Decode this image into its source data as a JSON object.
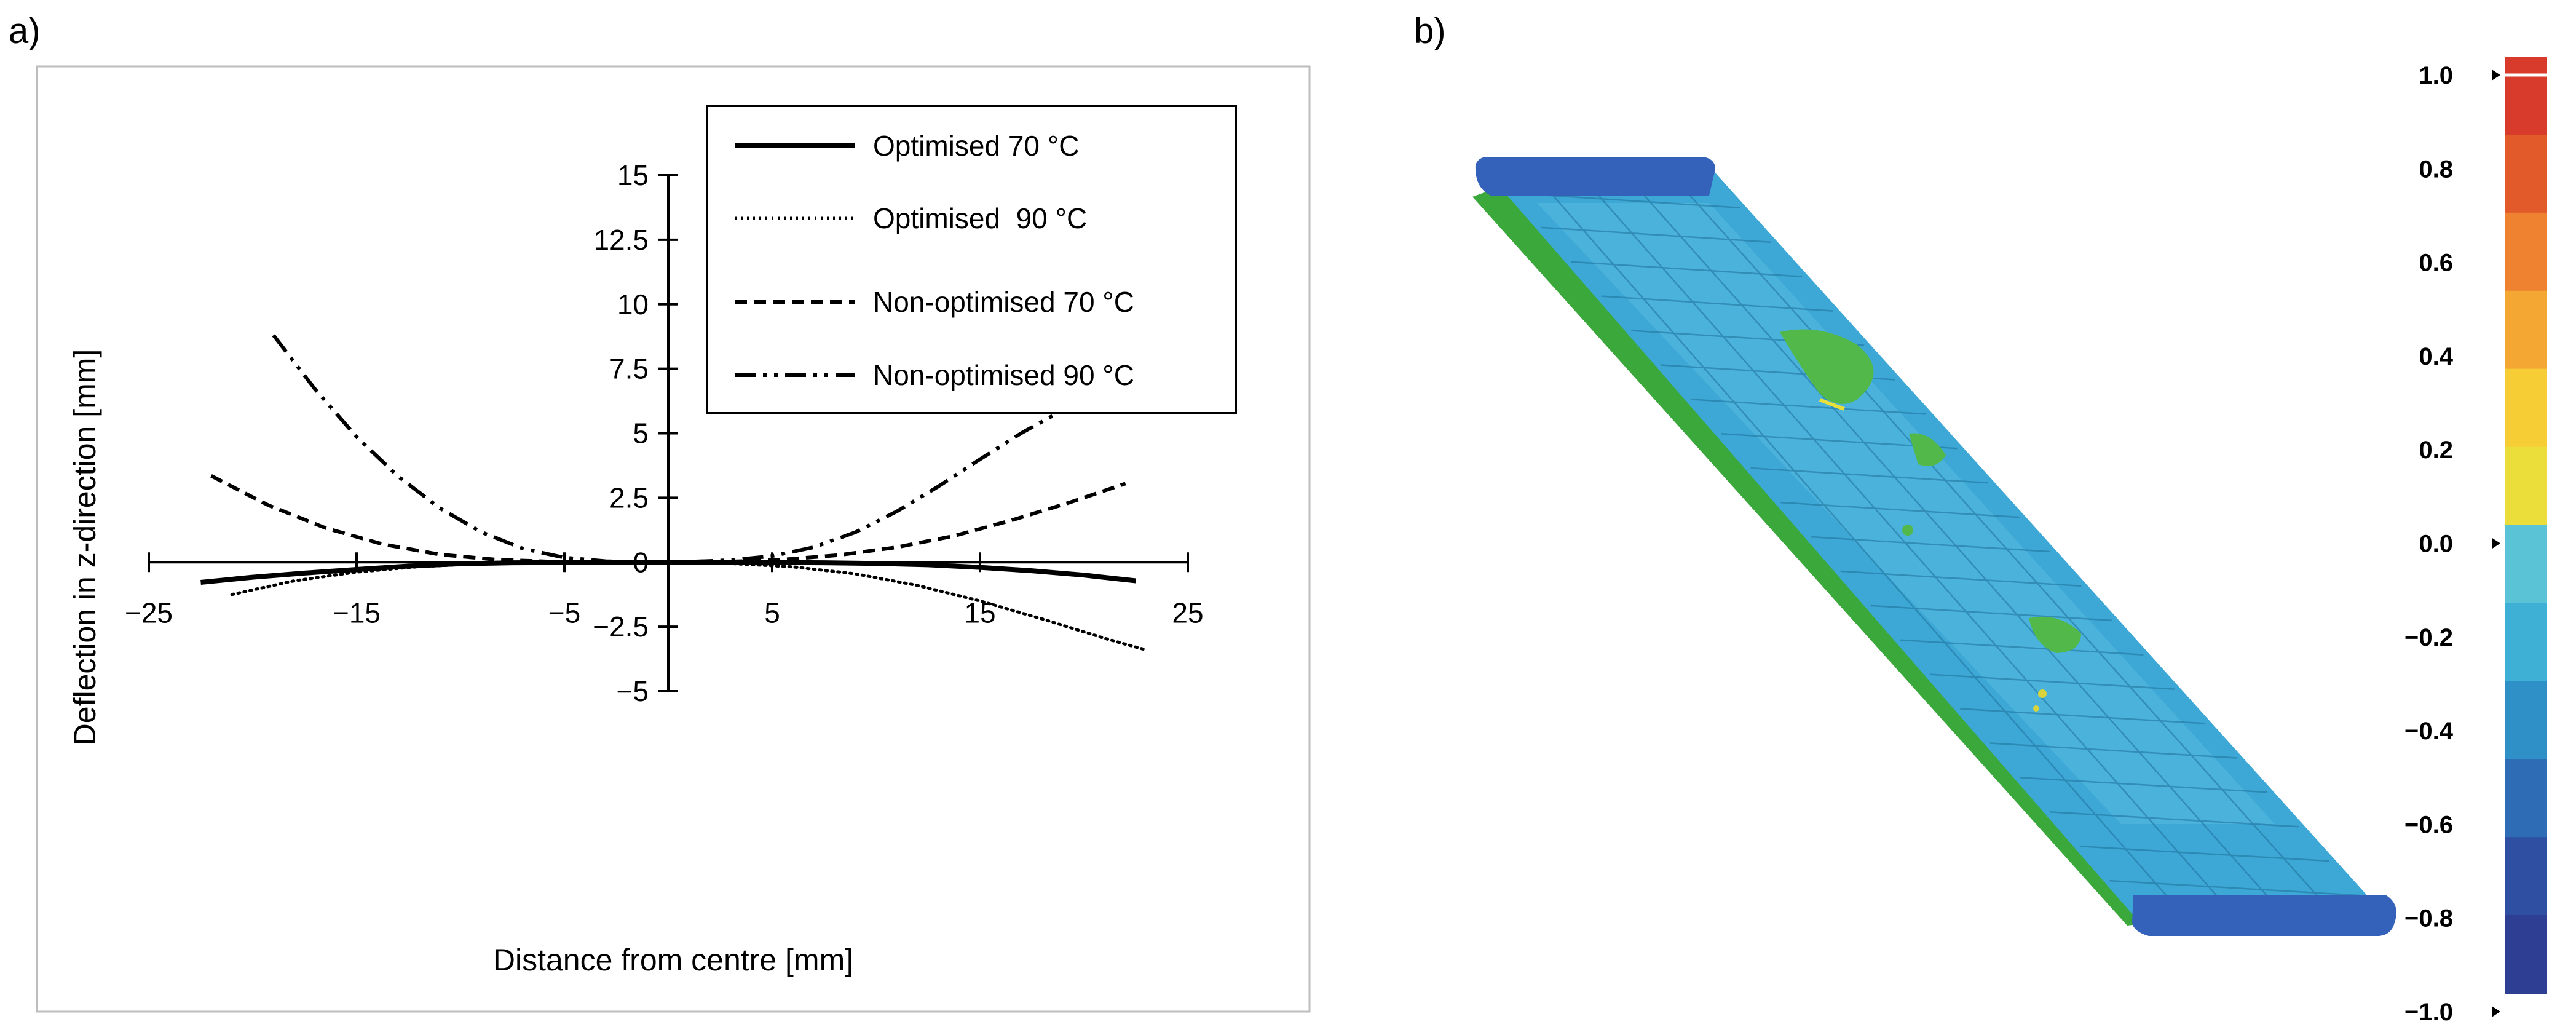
{
  "panels": {
    "a": "a)",
    "b": "b)"
  },
  "chart_data": {
    "type": "line",
    "xlabel": "Distance from centre [mm]",
    "ylabel": "Deflection in z-direction [mm]",
    "xlim": [
      -25,
      25
    ],
    "ylim": [
      -5,
      15
    ],
    "xticks": [
      -25,
      -15,
      -5,
      5,
      15,
      25
    ],
    "xtick_labels": [
      "−25",
      "−15",
      "−5",
      "5",
      "15",
      "25"
    ],
    "yticks": [
      -5,
      -2.5,
      0,
      2.5,
      5,
      7.5,
      10,
      12.5,
      15
    ],
    "ytick_labels": [
      "−5",
      "−2.5",
      "0",
      "2.5",
      "5",
      "7.5",
      "10",
      "12.5",
      "15"
    ],
    "legend_position": "top-right",
    "series": [
      {
        "name": "Optimised 70 °C",
        "dash": "solid",
        "x": [
          -22.5,
          -20,
          -17.5,
          -15,
          -12.5,
          -10,
          -7.5,
          -5,
          -2.5,
          0,
          2.5,
          5,
          7.5,
          10,
          12.5,
          15,
          17.5,
          20,
          22.5
        ],
        "y": [
          -0.78,
          -0.58,
          -0.42,
          -0.28,
          -0.15,
          -0.06,
          -0.02,
          -0.01,
          0.0,
          0.0,
          0.0,
          -0.01,
          -0.02,
          -0.05,
          -0.1,
          -0.2,
          -0.33,
          -0.5,
          -0.72
        ]
      },
      {
        "name": "Optimised  90 °C",
        "dash": "dotted",
        "x": [
          -21,
          -18,
          -15,
          -12,
          -9,
          -6,
          -3,
          0,
          3,
          6,
          9,
          12,
          15,
          18,
          21,
          23
        ],
        "y": [
          -1.25,
          -0.72,
          -0.38,
          -0.17,
          -0.06,
          -0.01,
          0.0,
          0.0,
          -0.05,
          -0.18,
          -0.45,
          -0.9,
          -1.5,
          -2.2,
          -2.95,
          -3.4
        ]
      },
      {
        "name": "Non-optimised 70 °C",
        "dash": "dashed",
        "x": [
          -22,
          -19.25,
          -16.5,
          -13.75,
          -11,
          -8.25,
          -5.5,
          -2.75,
          0,
          2.75,
          5.5,
          8.25,
          11,
          13.75,
          16.5,
          19.25,
          22
        ],
        "y": [
          3.35,
          2.21,
          1.33,
          0.7,
          0.3,
          0.1,
          0.02,
          0.0,
          0.0,
          0.02,
          0.1,
          0.28,
          0.58,
          1.02,
          1.62,
          2.3,
          3.05
        ]
      },
      {
        "name": "Non-optimised 90 °C",
        "dash": "dashdotdot",
        "x": [
          -19,
          -17,
          -15,
          -13,
          -11,
          -9,
          -7,
          -5,
          -3,
          -1,
          0,
          1,
          3,
          5,
          7,
          9,
          11,
          13,
          15,
          17,
          19
        ],
        "y": [
          8.8,
          6.71,
          4.86,
          3.33,
          2.1,
          1.17,
          0.53,
          0.18,
          0.04,
          0.0,
          0.0,
          0.02,
          0.08,
          0.24,
          0.58,
          1.16,
          1.97,
          2.94,
          3.99,
          5.01,
          5.9
        ]
      }
    ]
  },
  "fea_image": {
    "colorbar": {
      "ticks": [
        1.0,
        0.8,
        0.6,
        0.4,
        0.2,
        0.0,
        -0.2,
        -0.4,
        -0.6,
        -0.8,
        -1.0
      ],
      "tick_labels": [
        "1.0",
        "0.8",
        "0.6",
        "0.4",
        "0.2",
        "0.0",
        "−0.2",
        "−0.4",
        "−0.6",
        "−0.8",
        "−1.0"
      ],
      "colors": [
        "#d83a2c",
        "#e25a2a",
        "#ee8230",
        "#f4a733",
        "#f7cd35",
        "#ecde3a",
        "#5bc3d6",
        "#3fb0d5",
        "#2f90c8",
        "#2f6cb6",
        "#2f4fa2",
        "#2e3e93"
      ]
    },
    "colors": {
      "mesh_face": "#3da8d6",
      "mesh_end": "#3560b8",
      "mesh_edge": "#3aa83a",
      "patch": "#52b84a"
    }
  }
}
